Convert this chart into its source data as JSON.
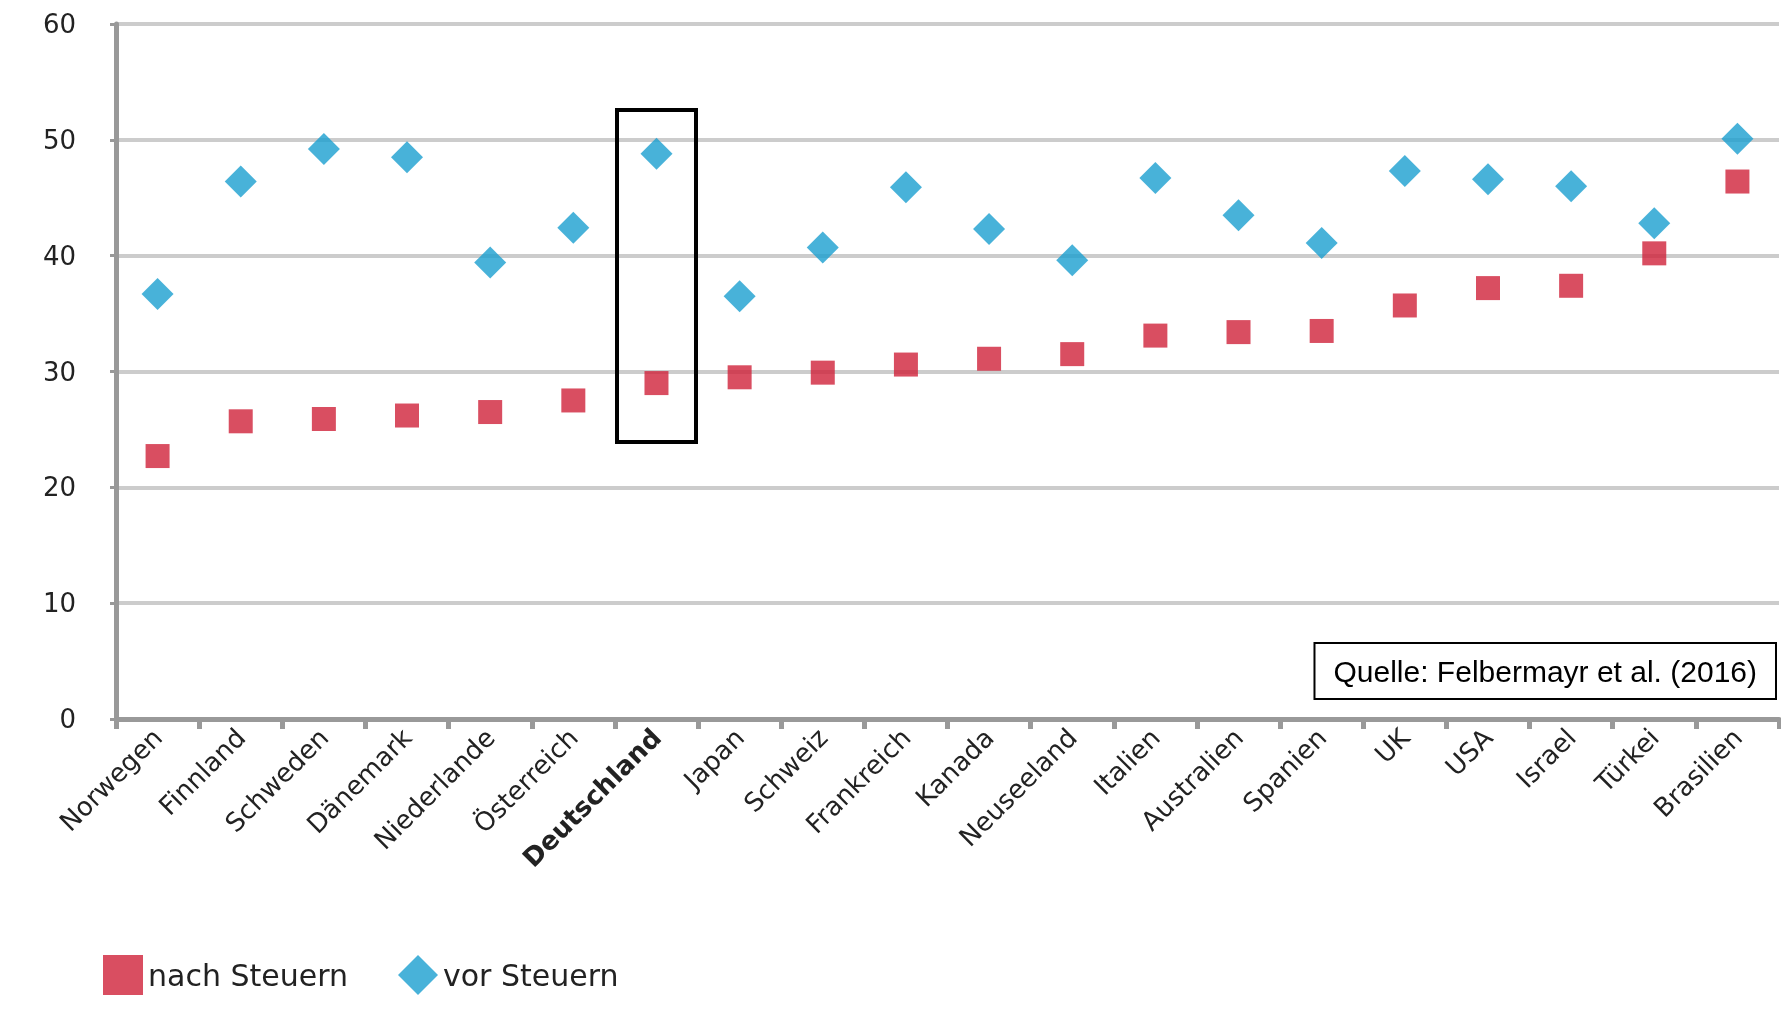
{
  "chart_data": {
    "type": "scatter",
    "categories": [
      "Norwegen",
      "Finnland",
      "Schweden",
      "Dänemark",
      "Niederlande",
      "Österreich",
      "Deutschland",
      "Japan",
      "Schweiz",
      "Frankreich",
      "Kanada",
      "Neuseeland",
      "Italien",
      "Australien",
      "Spanien",
      "UK",
      "USA",
      "Israel",
      "Türkei",
      "Brasilien"
    ],
    "series": [
      {
        "name": "nach Steuern",
        "color": "#d0223a",
        "marker": "square",
        "values": [
          22.7,
          25.7,
          25.9,
          26.2,
          26.5,
          27.5,
          29.0,
          29.5,
          29.9,
          30.6,
          31.1,
          31.5,
          33.1,
          33.4,
          33.5,
          35.7,
          37.2,
          37.4,
          40.2,
          46.4
        ]
      },
      {
        "name": "vor Steuern",
        "color": "#1a9fd0",
        "marker": "diamond",
        "values": [
          36.7,
          46.4,
          49.2,
          48.5,
          39.4,
          42.4,
          48.8,
          36.5,
          40.7,
          45.9,
          42.3,
          39.6,
          46.7,
          43.5,
          41.1,
          47.3,
          46.6,
          46.0,
          42.8,
          50.1
        ]
      }
    ],
    "ylim": [
      0,
      60
    ],
    "yticks": [
      0,
      10,
      20,
      30,
      40,
      50,
      60
    ],
    "grid": "y",
    "legend": "bottom left",
    "annotations": [
      "Quelle: Felbermayr et al. (2016)"
    ]
  }
}
